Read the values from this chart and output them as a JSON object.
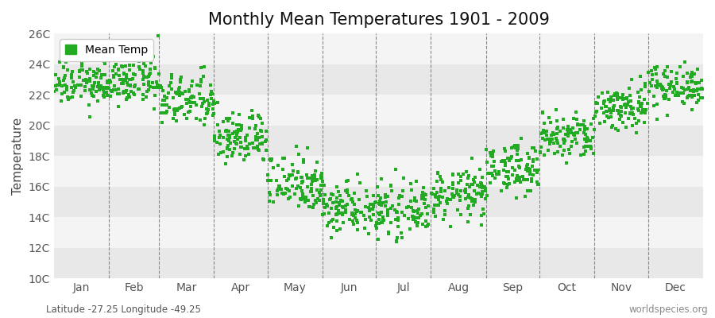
{
  "title": "Monthly Mean Temperatures 1901 - 2009",
  "ylabel": "Temperature",
  "subtitle": "Latitude -27.25 Longitude -49.25",
  "watermark": "worldspecies.org",
  "legend_label": "Mean Temp",
  "years": 109,
  "months": [
    "Jan",
    "Feb",
    "Mar",
    "Apr",
    "May",
    "Jun",
    "Jul",
    "Aug",
    "Sep",
    "Oct",
    "Nov",
    "Dec"
  ],
  "month_mean_temps": [
    22.8,
    22.9,
    21.6,
    19.2,
    16.3,
    14.7,
    14.4,
    15.5,
    17.2,
    19.2,
    21.2,
    22.6
  ],
  "month_std_temps": [
    0.75,
    0.75,
    0.85,
    0.85,
    0.95,
    0.85,
    0.8,
    0.8,
    0.8,
    0.8,
    0.8,
    0.7
  ],
  "ylim": [
    10,
    26
  ],
  "yticks": [
    10,
    12,
    14,
    16,
    18,
    20,
    22,
    24,
    26
  ],
  "ytick_labels": [
    "10C",
    "12C",
    "14C",
    "16C",
    "18C",
    "20C",
    "22C",
    "24C",
    "26C"
  ],
  "band_colors": [
    "#e8e8e8",
    "#f4f4f4"
  ],
  "dot_color": "#22aa22",
  "dot_size": 5,
  "background_color": "#ffffff",
  "dashed_line_color": "#888888",
  "title_fontsize": 15,
  "axis_fontsize": 11,
  "tick_fontsize": 10,
  "legend_fontsize": 10,
  "month_days": [
    31,
    28,
    31,
    30,
    31,
    30,
    31,
    31,
    30,
    31,
    30,
    31
  ]
}
